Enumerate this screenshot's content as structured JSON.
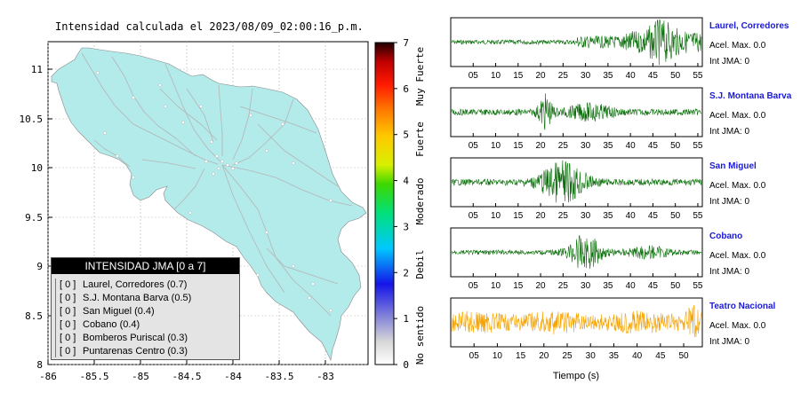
{
  "map": {
    "title": "Intensidad calculada el 2023/08/09_02:00:16_p.m.",
    "x_ticks": [
      "-86",
      "-85.5",
      "-85",
      "-84.5",
      "-84",
      "-83.5",
      "-83"
    ],
    "y_ticks": [
      "8",
      "8.5",
      "9",
      "9.5",
      "10",
      "10.5",
      "11"
    ],
    "land_color": "#b3eaea",
    "road_color": "#b5b5b5"
  },
  "colorbar": {
    "ticks": [
      "0",
      "1",
      "2",
      "3",
      "4",
      "5",
      "6",
      "7"
    ],
    "labels": [
      "No sentido",
      "Debil",
      "Moderado",
      "Fuerte",
      "Muy Fuerte"
    ]
  },
  "legend": {
    "title": "INTENSIDAD JMA [0 a 7]",
    "items": [
      {
        "level": "[ 0 ]",
        "name": "Laurel, Corredores (0.7)"
      },
      {
        "level": "[ 0 ]",
        "name": "S.J. Montana Barva (0.5)"
      },
      {
        "level": "[ 0 ]",
        "name": "San Miguel (0.4)"
      },
      {
        "level": "[ 0 ]",
        "name": "Cobano (0.4)"
      },
      {
        "level": "[ 0 ]",
        "name": "Bomberos Puriscal (0.3)"
      },
      {
        "level": "[ 0 ]",
        "name": "Puntarenas Centro (0.3)"
      }
    ]
  },
  "waveforms": {
    "xlabel": "Tiempo (s)",
    "stations": [
      {
        "name": "Laurel, Corredores",
        "acel": "Acel. Max. 0.0",
        "jma": "Int JMA: 0",
        "color": "#0a6e0a",
        "ticks": [
          "05",
          "10",
          "15",
          "20",
          "25",
          "30",
          "35",
          "40",
          "45",
          "50",
          "55"
        ]
      },
      {
        "name": "S.J. Montana Barva",
        "acel": "Acel. Max. 0.0",
        "jma": "Int JMA: 0",
        "color": "#0a6e0a",
        "ticks": [
          "05",
          "10",
          "15",
          "20",
          "25",
          "30",
          "35",
          "40",
          "45",
          "50",
          "55"
        ]
      },
      {
        "name": "San Miguel",
        "acel": "Acel. Max. 0.0",
        "jma": "Int JMA: 0",
        "color": "#0a6e0a",
        "ticks": [
          "05",
          "10",
          "15",
          "20",
          "25",
          "30",
          "35",
          "40",
          "45",
          "50",
          "55"
        ]
      },
      {
        "name": "Cobano",
        "acel": "Acel. Max. 0.0",
        "jma": "Int JMA: 0",
        "color": "#0a6e0a",
        "ticks": [
          "05",
          "10",
          "15",
          "20",
          "25",
          "30",
          "35",
          "40",
          "45",
          "50",
          "55"
        ]
      },
      {
        "name": "Teatro Nacional",
        "acel": "Acel. Max. 0.0",
        "jma": "Int JMA: 0",
        "color": "#f5a300",
        "ticks": [
          "05",
          "10",
          "15",
          "20",
          "25",
          "30",
          "35",
          "40",
          "45",
          "50"
        ]
      }
    ]
  },
  "chart_data": [
    {
      "type": "heatmap",
      "title": "Intensidad calculada el 2023/08/09_02:00:16_p.m.",
      "xlim": [
        -86,
        -82.6
      ],
      "ylim": [
        8,
        11.3
      ],
      "colorbar": {
        "range": [
          0,
          7
        ],
        "labels": [
          "No sentido",
          "Debil",
          "Moderado",
          "Fuerte",
          "Muy Fuerte"
        ]
      },
      "legend_title": "INTENSIDAD JMA [0 a 7]",
      "stations": [
        {
          "name": "Laurel, Corredores",
          "jma": 0,
          "value": 0.7
        },
        {
          "name": "S.J. Montana Barva",
          "jma": 0,
          "value": 0.5
        },
        {
          "name": "San Miguel",
          "jma": 0,
          "value": 0.4
        },
        {
          "name": "Cobano",
          "jma": 0,
          "value": 0.4
        },
        {
          "name": "Bomberos Puriscal",
          "jma": 0,
          "value": 0.3
        },
        {
          "name": "Puntarenas Centro",
          "jma": 0,
          "value": 0.3
        }
      ]
    },
    {
      "type": "line",
      "xlabel": "Tiempo (s)",
      "xlim": [
        0,
        56
      ],
      "series": [
        {
          "name": "Laurel, Corredores",
          "acel_max": 0.0,
          "int_jma": 0
        },
        {
          "name": "S.J. Montana Barva",
          "acel_max": 0.0,
          "int_jma": 0
        },
        {
          "name": "San Miguel",
          "acel_max": 0.0,
          "int_jma": 0
        },
        {
          "name": "Cobano",
          "acel_max": 0.0,
          "int_jma": 0
        },
        {
          "name": "Teatro Nacional",
          "acel_max": 0.0,
          "int_jma": 0
        }
      ]
    }
  ]
}
